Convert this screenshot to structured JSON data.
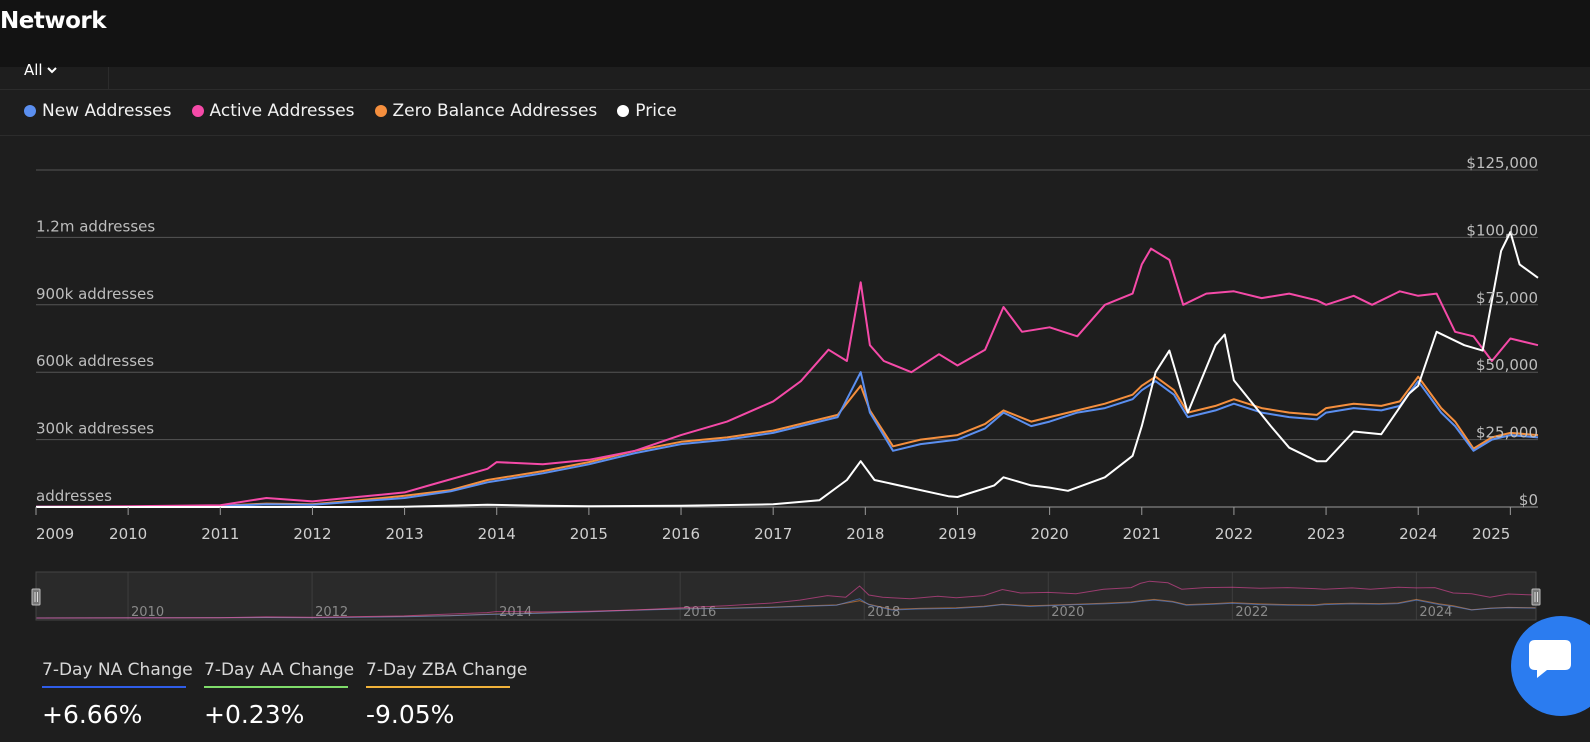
{
  "header": {
    "title": "Network"
  },
  "range": {
    "selected": "All"
  },
  "legend": [
    {
      "name": "New Addresses",
      "color": "#5b8ff0"
    },
    {
      "name": "Active Addresses",
      "color": "#f54aa8"
    },
    {
      "name": "Zero Balance Addresses",
      "color": "#f58f3e"
    },
    {
      "name": "Price",
      "color": "#ffffff"
    }
  ],
  "stats": [
    {
      "label": "7-Day NA Change",
      "value": "+6.66%",
      "color": "#2f5de8"
    },
    {
      "label": "7-Day AA Change",
      "value": "+0.23%",
      "color": "#7fdc6a"
    },
    {
      "label": "7-Day ZBA Change",
      "value": "-9.05%",
      "color": "#f0b23a"
    }
  ],
  "chat": {
    "icon": "chat-bubble-icon"
  },
  "chart_data": {
    "type": "line",
    "x_ticks": [
      "2009",
      "2010",
      "2011",
      "2012",
      "2013",
      "2014",
      "2015",
      "2016",
      "2017",
      "2018",
      "2019",
      "2020",
      "2021",
      "2022",
      "2023",
      "2024",
      "2025"
    ],
    "y_left": {
      "ticks": [
        0,
        300000,
        600000,
        900000,
        1200000
      ],
      "labels": [
        "addresses",
        "300k addresses",
        "600k addresses",
        "900k addresses",
        "1.2m addresses"
      ],
      "range": [
        0,
        1500000
      ]
    },
    "y_right": {
      "ticks": [
        0,
        25000,
        50000,
        75000,
        100000,
        125000
      ],
      "labels": [
        "$0",
        "$25,000",
        "$50,000",
        "$75,000",
        "$100,000",
        "$125,000"
      ],
      "range": [
        0,
        125000
      ]
    },
    "navigator_labels": [
      "2010",
      "2012",
      "2014",
      "2016",
      "2018",
      "2020",
      "2022",
      "2024"
    ],
    "grid": true,
    "x_range": [
      2009.0,
      2025.3
    ],
    "series": [
      {
        "name": "New Addresses",
        "axis": "left",
        "color": "#5b8ff0",
        "x": [
          2009.0,
          2010.0,
          2011.0,
          2011.5,
          2012.0,
          2012.5,
          2013.0,
          2013.5,
          2013.9,
          2014.5,
          2015.0,
          2015.5,
          2016.0,
          2016.5,
          2017.0,
          2017.4,
          2017.7,
          2017.95,
          2018.05,
          2018.3,
          2018.6,
          2019.0,
          2019.3,
          2019.5,
          2019.8,
          2020.0,
          2020.3,
          2020.6,
          2020.9,
          2021.0,
          2021.15,
          2021.35,
          2021.5,
          2021.8,
          2022.0,
          2022.3,
          2022.6,
          2022.9,
          2023.0,
          2023.3,
          2023.6,
          2023.8,
          2024.0,
          2024.25,
          2024.4,
          2024.6,
          2024.8,
          2025.0,
          2025.3
        ],
        "y": [
          1000,
          2000,
          5000,
          12000,
          10000,
          25000,
          40000,
          70000,
          110000,
          150000,
          190000,
          240000,
          280000,
          300000,
          330000,
          370000,
          400000,
          600000,
          420000,
          250000,
          280000,
          300000,
          350000,
          420000,
          360000,
          380000,
          420000,
          440000,
          480000,
          520000,
          560000,
          500000,
          400000,
          430000,
          460000,
          420000,
          400000,
          390000,
          420000,
          440000,
          430000,
          450000,
          560000,
          420000,
          360000,
          250000,
          300000,
          320000,
          310000
        ]
      },
      {
        "name": "Active Addresses",
        "axis": "left",
        "color": "#f54aa8",
        "x": [
          2009.0,
          2010.0,
          2011.0,
          2011.5,
          2012.0,
          2012.5,
          2013.0,
          2013.3,
          2013.9,
          2014.0,
          2014.5,
          2015.0,
          2015.5,
          2016.0,
          2016.5,
          2017.0,
          2017.3,
          2017.6,
          2017.8,
          2017.95,
          2018.05,
          2018.2,
          2018.5,
          2018.8,
          2019.0,
          2019.3,
          2019.5,
          2019.7,
          2020.0,
          2020.3,
          2020.6,
          2020.9,
          2021.0,
          2021.1,
          2021.3,
          2021.45,
          2021.7,
          2022.0,
          2022.3,
          2022.6,
          2022.9,
          2023.0,
          2023.3,
          2023.5,
          2023.8,
          2024.0,
          2024.2,
          2024.4,
          2024.6,
          2024.8,
          2025.0,
          2025.3
        ],
        "y": [
          1000,
          3000,
          8000,
          40000,
          25000,
          45000,
          65000,
          100000,
          170000,
          200000,
          190000,
          210000,
          250000,
          320000,
          380000,
          470000,
          560000,
          700000,
          650000,
          1000000,
          720000,
          650000,
          600000,
          680000,
          630000,
          700000,
          890000,
          780000,
          800000,
          760000,
          900000,
          950000,
          1080000,
          1150000,
          1100000,
          900000,
          950000,
          960000,
          930000,
          950000,
          920000,
          900000,
          940000,
          900000,
          960000,
          940000,
          950000,
          780000,
          760000,
          650000,
          750000,
          720000
        ]
      },
      {
        "name": "Zero Balance Addresses",
        "axis": "left",
        "color": "#f58f3e",
        "x": [
          2009.0,
          2010.0,
          2011.0,
          2011.5,
          2012.0,
          2012.5,
          2013.0,
          2013.5,
          2013.9,
          2014.5,
          2015.0,
          2015.5,
          2016.0,
          2016.5,
          2017.0,
          2017.4,
          2017.7,
          2017.95,
          2018.05,
          2018.3,
          2018.6,
          2019.0,
          2019.3,
          2019.5,
          2019.8,
          2020.0,
          2020.3,
          2020.6,
          2020.9,
          2021.0,
          2021.15,
          2021.35,
          2021.5,
          2021.8,
          2022.0,
          2022.3,
          2022.6,
          2022.9,
          2023.0,
          2023.3,
          2023.6,
          2023.8,
          2024.0,
          2024.25,
          2024.4,
          2024.6,
          2024.8,
          2025.0,
          2025.3
        ],
        "y": [
          1000,
          2000,
          6000,
          15000,
          12000,
          30000,
          50000,
          75000,
          120000,
          160000,
          200000,
          250000,
          290000,
          310000,
          340000,
          380000,
          410000,
          540000,
          430000,
          270000,
          300000,
          320000,
          370000,
          430000,
          380000,
          400000,
          430000,
          460000,
          500000,
          540000,
          580000,
          520000,
          420000,
          450000,
          480000,
          440000,
          420000,
          410000,
          440000,
          460000,
          450000,
          470000,
          580000,
          440000,
          380000,
          260000,
          310000,
          330000,
          320000
        ]
      },
      {
        "name": "Price",
        "axis": "right",
        "color": "#ffffff",
        "x": [
          2009.0,
          2010.5,
          2011.5,
          2012.5,
          2013.0,
          2013.9,
          2014.5,
          2015.0,
          2016.0,
          2017.0,
          2017.5,
          2017.8,
          2017.95,
          2018.1,
          2018.5,
          2018.9,
          2019.0,
          2019.4,
          2019.5,
          2019.8,
          2020.0,
          2020.2,
          2020.6,
          2020.9,
          2021.0,
          2021.15,
          2021.3,
          2021.5,
          2021.8,
          2021.9,
          2022.0,
          2022.4,
          2022.6,
          2022.9,
          2023.0,
          2023.3,
          2023.6,
          2023.9,
          2024.0,
          2024.2,
          2024.5,
          2024.7,
          2024.9,
          2025.0,
          2025.1,
          2025.3
        ],
        "y": [
          0,
          0,
          10,
          10,
          100,
          800,
          500,
          300,
          430,
          1000,
          2500,
          10000,
          17000,
          10000,
          7000,
          4000,
          3700,
          8000,
          11000,
          8000,
          7200,
          6000,
          11000,
          19000,
          30000,
          50000,
          58000,
          35000,
          60000,
          64000,
          47000,
          30000,
          22000,
          17000,
          17000,
          28000,
          27000,
          42000,
          45000,
          65000,
          60000,
          58000,
          95000,
          102000,
          90000,
          85000
        ]
      }
    ]
  }
}
